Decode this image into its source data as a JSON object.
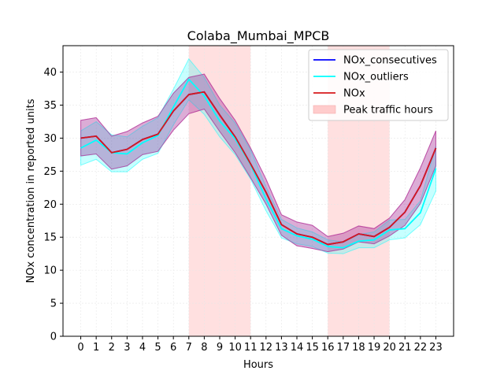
{
  "chart_data": {
    "type": "line",
    "title": "Colaba_Mumbai_MPCB",
    "xlabel": "Hours",
    "ylabel": "NOx concentration in reported units",
    "x": [
      0,
      1,
      2,
      3,
      4,
      5,
      6,
      7,
      8,
      9,
      10,
      11,
      12,
      13,
      14,
      15,
      16,
      17,
      18,
      19,
      20,
      21,
      22,
      23
    ],
    "xlim": [
      -1.15,
      24.15
    ],
    "ylim": [
      0,
      44
    ],
    "yticks": [
      0,
      5,
      10,
      15,
      20,
      25,
      30,
      35,
      40
    ],
    "grid": true,
    "legend_position": "top-right",
    "series": [
      {
        "name": "NOx_consecutives",
        "color": "#0000ff",
        "values": [
          30.0,
          30.3,
          27.8,
          28.3,
          29.8,
          30.6,
          34.1,
          36.6,
          37.0,
          33.5,
          30.2,
          26.1,
          21.8,
          16.9,
          15.5,
          15.0,
          13.9,
          14.3,
          15.5,
          15.1,
          16.5,
          18.8,
          22.8,
          28.5
        ],
        "band_low": [
          27.3,
          27.6,
          25.3,
          25.8,
          27.5,
          28.0,
          31.2,
          33.7,
          34.4,
          31.0,
          27.8,
          24.0,
          20.0,
          15.3,
          13.7,
          13.3,
          12.8,
          13.2,
          14.3,
          14.0,
          15.2,
          16.8,
          20.1,
          25.8
        ],
        "band_high": [
          32.7,
          33.1,
          30.3,
          31.0,
          32.3,
          33.3,
          36.8,
          39.2,
          39.7,
          36.0,
          32.7,
          28.5,
          23.8,
          18.4,
          17.3,
          16.8,
          15.1,
          15.6,
          16.7,
          16.3,
          17.9,
          20.7,
          25.5,
          31.1
        ],
        "band_color": "#7b4bb0"
      },
      {
        "name": "NOx_outliers",
        "color": "#00ffff",
        "values": [
          28.5,
          29.7,
          27.8,
          27.6,
          29.3,
          30.4,
          34.7,
          38.9,
          36.4,
          32.6,
          29.9,
          26.0,
          20.8,
          16.3,
          15.2,
          14.7,
          13.6,
          13.4,
          14.4,
          14.6,
          16.1,
          16.3,
          18.7,
          25.4
        ],
        "band_low": [
          25.9,
          26.8,
          24.9,
          24.9,
          26.8,
          27.7,
          32.0,
          35.8,
          33.6,
          30.2,
          27.5,
          23.8,
          19.0,
          14.9,
          14.0,
          13.6,
          12.6,
          12.5,
          13.4,
          13.4,
          14.6,
          14.9,
          16.9,
          22.0
        ],
        "band_high": [
          31.1,
          32.5,
          30.5,
          30.2,
          31.8,
          33.1,
          37.4,
          42.0,
          39.2,
          35.0,
          32.3,
          28.2,
          22.6,
          17.7,
          16.4,
          15.8,
          14.6,
          14.3,
          15.4,
          15.8,
          17.6,
          17.7,
          20.5,
          28.8
        ],
        "band_color": "#00ffff"
      },
      {
        "name": "NOx",
        "color": "#d7191c",
        "values": [
          30.0,
          30.3,
          27.8,
          28.3,
          29.8,
          30.6,
          34.1,
          36.6,
          37.0,
          33.5,
          30.2,
          26.1,
          21.8,
          16.9,
          15.5,
          15.0,
          13.9,
          14.3,
          15.5,
          15.1,
          16.5,
          18.8,
          22.8,
          28.5
        ],
        "band_low": [
          27.3,
          27.6,
          25.3,
          25.8,
          27.5,
          28.0,
          31.2,
          33.7,
          34.4,
          31.0,
          27.8,
          24.0,
          20.0,
          15.3,
          13.7,
          13.3,
          12.8,
          13.2,
          14.3,
          14.0,
          15.2,
          16.8,
          20.1,
          25.8
        ],
        "band_high": [
          32.7,
          33.1,
          30.3,
          31.0,
          32.3,
          33.3,
          36.8,
          39.2,
          39.7,
          36.0,
          32.7,
          28.5,
          23.8,
          18.4,
          17.3,
          16.8,
          15.1,
          15.6,
          16.7,
          16.3,
          17.9,
          20.7,
          25.5,
          31.1
        ],
        "band_color": "#c71585"
      }
    ],
    "highlight_regions": [
      {
        "label": "Peak traffic hours",
        "x_start": 7,
        "x_end": 11,
        "color": "#ffcccc"
      },
      {
        "label": "Peak traffic hours",
        "x_start": 16,
        "x_end": 20,
        "color": "#ffcccc"
      }
    ],
    "legend": [
      {
        "label": "NOx_consecutives",
        "kind": "line",
        "color": "#0000ff"
      },
      {
        "label": "NOx_outliers",
        "kind": "line",
        "color": "#00ffff"
      },
      {
        "label": "NOx",
        "kind": "line",
        "color": "#d7191c"
      },
      {
        "label": "Peak traffic hours",
        "kind": "patch",
        "color": "#ffcccc"
      }
    ]
  }
}
